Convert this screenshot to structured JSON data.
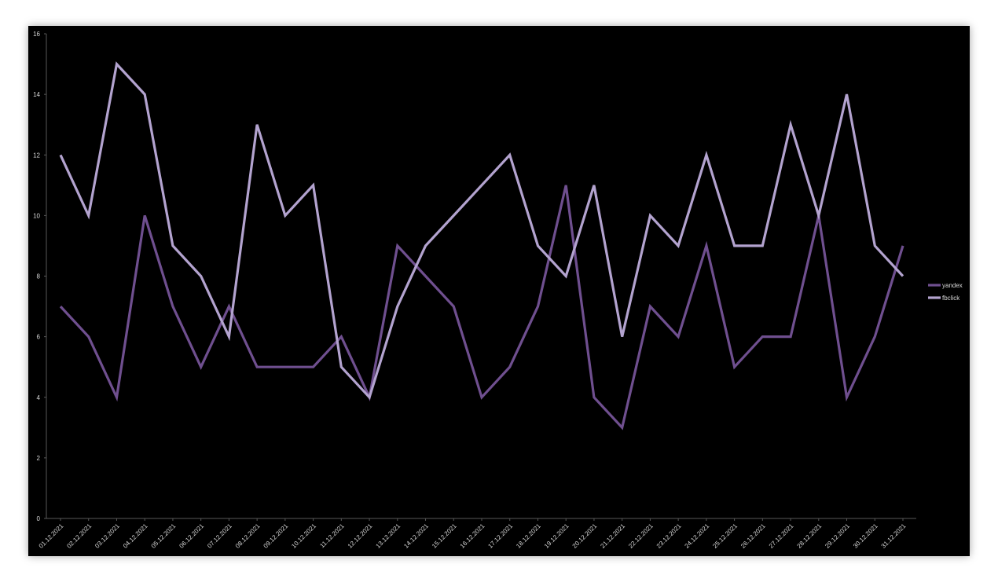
{
  "chart_data": {
    "type": "line",
    "title": "",
    "xlabel": "",
    "ylabel": "",
    "ylim": [
      0,
      16
    ],
    "yticks": [
      "0",
      "2",
      "4",
      "6",
      "8",
      "10",
      "12",
      "14",
      "16"
    ],
    "grid": false,
    "legend_position": "right",
    "categories": [
      "01.12.2021",
      "02.12.2021",
      "03.12.2021",
      "04.12.2021",
      "05.12.2021",
      "06.12.2021",
      "07.12.2021",
      "08.12.2021",
      "09.12.2021",
      "10.12.2021",
      "11.12.2021",
      "12.12.2021",
      "13.12.2021",
      "14.12.2021",
      "15.12.2021",
      "16.12.2021",
      "17.12.2021",
      "18.12.2021",
      "19.12.2021",
      "20.12.2021",
      "21.12.2021",
      "22.12.2021",
      "23.12.2021",
      "24.12.2021",
      "25.12.2021",
      "26.12.2021",
      "27.12.2021",
      "28.12.2021",
      "29.12.2021",
      "30.12.2021",
      "31.12.2021"
    ],
    "series": [
      {
        "name": "yandex",
        "color": "#6f4f8f",
        "values": [
          7,
          6,
          4,
          10,
          7,
          5,
          7,
          5,
          5,
          5,
          6,
          4,
          9,
          8,
          7,
          4,
          5,
          7,
          11,
          4,
          3,
          7,
          6,
          9,
          5,
          6,
          6,
          10,
          4,
          6,
          9
        ]
      },
      {
        "name": "fbclick",
        "color": "#b3a3cf",
        "values": [
          12,
          10,
          15,
          14,
          9,
          8,
          6,
          13,
          10,
          11,
          5,
          4,
          7,
          9,
          10,
          11,
          12,
          9,
          8,
          11,
          6,
          10,
          9,
          12,
          9,
          9,
          13,
          10,
          14,
          9,
          8
        ]
      }
    ]
  }
}
